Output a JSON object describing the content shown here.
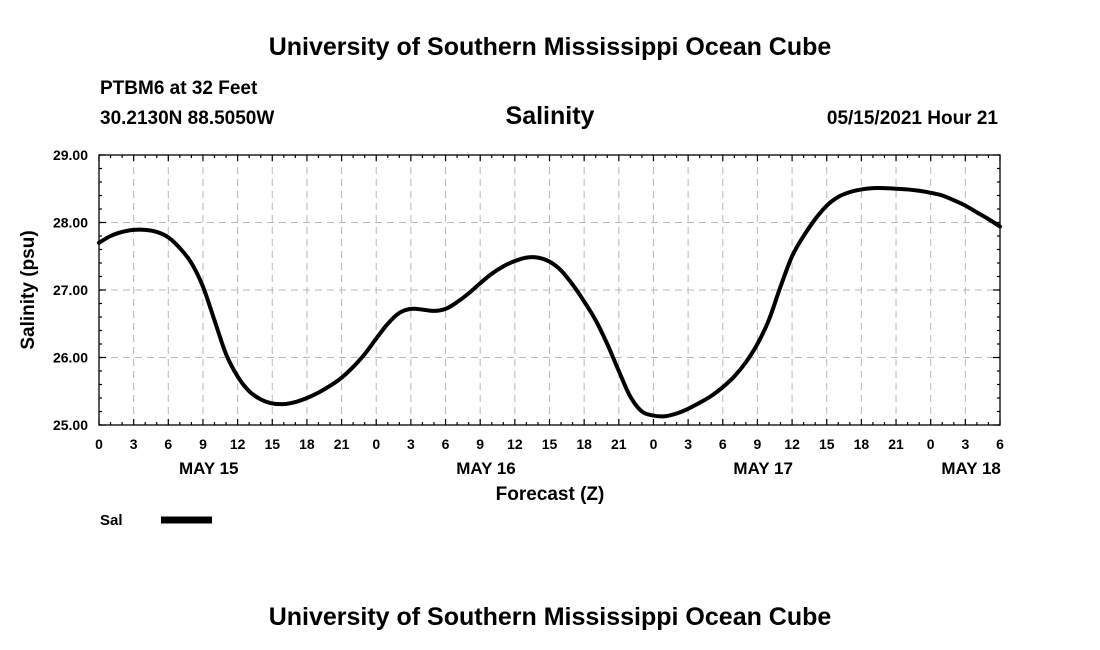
{
  "page": {
    "title_top": "University of Southern Mississippi Ocean Cube",
    "title_bottom": "University of Southern Mississippi Ocean Cube",
    "station": "PTBM6 at 32 Feet",
    "coords": "30.2130N  88.5050W",
    "issued": "05/15/2021 Hour 21"
  },
  "chart_data": {
    "type": "line",
    "title": "Salinity",
    "xlabel": "Forecast (Z)",
    "ylabel": "Salinity (psu)",
    "ylim": [
      25.0,
      29.0
    ],
    "xlim_hours": [
      0,
      78
    ],
    "grid": true,
    "y_ticks": [
      "25.00",
      "26.00",
      "27.00",
      "28.00",
      "29.00"
    ],
    "x_tick_hours": [
      0,
      3,
      6,
      9,
      12,
      15,
      18,
      21,
      24,
      27,
      30,
      33,
      36,
      39,
      42,
      45,
      48,
      51,
      54,
      57,
      60,
      63,
      66,
      69,
      72,
      75,
      78
    ],
    "x_tick_labels": [
      "0",
      "3",
      "6",
      "9",
      "12",
      "15",
      "18",
      "21",
      "0",
      "3",
      "6",
      "9",
      "12",
      "15",
      "18",
      "21",
      "0",
      "3",
      "6",
      "9",
      "12",
      "15",
      "18",
      "21",
      "0",
      "3",
      "6"
    ],
    "date_labels": [
      {
        "label": "MAY 15",
        "hour": 9.5
      },
      {
        "label": "MAY 16",
        "hour": 33.5
      },
      {
        "label": "MAY 17",
        "hour": 57.5
      },
      {
        "label": "MAY 18",
        "hour": 75.5
      }
    ],
    "series": [
      {
        "name": "Sal",
        "x_hours": [
          0,
          1,
          2,
          3,
          4,
          5,
          6,
          7,
          8,
          9,
          10,
          11,
          12,
          13,
          14,
          15,
          16,
          17,
          18,
          19,
          20,
          21,
          22,
          23,
          24,
          25,
          26,
          27,
          28,
          29,
          30,
          31,
          32,
          33,
          34,
          35,
          36,
          37,
          38,
          39,
          40,
          41,
          42,
          43,
          44,
          45,
          46,
          47,
          48,
          49,
          50,
          51,
          52,
          53,
          54,
          55,
          56,
          57,
          58,
          59,
          60,
          61,
          62,
          63,
          64,
          65,
          66,
          67,
          68,
          69,
          70,
          71,
          72,
          73,
          74,
          75,
          76,
          77,
          78
        ],
        "values": [
          27.7,
          27.8,
          27.86,
          27.89,
          27.89,
          27.86,
          27.78,
          27.62,
          27.4,
          27.05,
          26.55,
          26.05,
          25.72,
          25.5,
          25.38,
          25.32,
          25.31,
          25.34,
          25.4,
          25.48,
          25.58,
          25.7,
          25.86,
          26.05,
          26.28,
          26.5,
          26.66,
          26.72,
          26.71,
          26.69,
          26.72,
          26.82,
          26.95,
          27.1,
          27.24,
          27.35,
          27.43,
          27.48,
          27.48,
          27.42,
          27.29,
          27.08,
          26.83,
          26.55,
          26.2,
          25.8,
          25.42,
          25.2,
          25.14,
          25.13,
          25.17,
          25.24,
          25.33,
          25.43,
          25.56,
          25.72,
          25.93,
          26.2,
          26.56,
          27.05,
          27.5,
          27.8,
          28.05,
          28.25,
          28.38,
          28.45,
          28.49,
          28.51,
          28.51,
          28.5,
          28.49,
          28.47,
          28.44,
          28.4,
          28.33,
          28.25,
          28.15,
          28.05,
          27.94
        ]
      }
    ],
    "legend": [
      {
        "label": "Sal",
        "placement": "bottom-left"
      }
    ]
  }
}
